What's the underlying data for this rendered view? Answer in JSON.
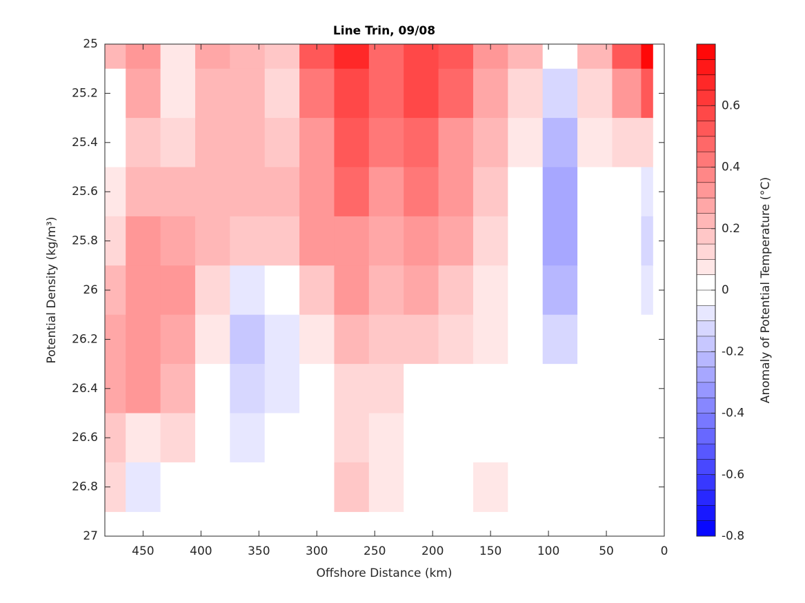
{
  "chart_data": {
    "type": "contourf",
    "title": "Line Trin, 09/08",
    "x_label": "Offshore Distance (km)",
    "y_label": "Potential Density (kg/m³)",
    "colorbar_label": "Anomaly of Potential Temperature (°C)",
    "xlim": [
      483,
      0
    ],
    "xticks": [
      450,
      400,
      350,
      300,
      250,
      200,
      150,
      100,
      50,
      0
    ],
    "ylim": [
      27,
      25
    ],
    "yticks": [
      25,
      25.2,
      25.4,
      25.6,
      25.8,
      26,
      26.2,
      26.4,
      26.6,
      26.8,
      27
    ],
    "clim": [
      -0.8,
      0.8
    ],
    "cticks": [
      -0.8,
      -0.6,
      -0.4,
      -0.2,
      0,
      0.2,
      0.4,
      0.6
    ],
    "x": [
      480,
      450,
      420,
      390,
      360,
      330,
      300,
      270,
      240,
      210,
      180,
      150,
      120,
      90,
      60,
      30,
      10
    ],
    "y": [
      25,
      25.2,
      25.4,
      25.6,
      25.8,
      26,
      26.2,
      26.4,
      26.6,
      26.8
    ],
    "z": [
      [
        0.2,
        0.3,
        0.05,
        0.25,
        0.2,
        0.15,
        0.5,
        0.65,
        0.45,
        0.55,
        0.5,
        0.3,
        0.2,
        0.0,
        0.2,
        0.5,
        0.75
      ],
      [
        0.0,
        0.25,
        0.05,
        0.2,
        0.2,
        0.1,
        0.4,
        0.6,
        0.45,
        0.55,
        0.45,
        0.25,
        0.1,
        -0.15,
        0.1,
        0.3,
        0.5
      ],
      [
        -0.05,
        0.15,
        0.1,
        0.2,
        0.2,
        0.15,
        0.35,
        0.5,
        0.4,
        0.45,
        0.35,
        0.2,
        0.05,
        -0.25,
        0.05,
        0.1,
        0.1
      ],
      [
        0.05,
        0.2,
        0.2,
        0.2,
        0.2,
        0.2,
        0.35,
        0.45,
        0.3,
        0.4,
        0.3,
        0.15,
        0.0,
        -0.3,
        -0.05,
        -0.05,
        -0.1
      ],
      [
        0.1,
        0.3,
        0.25,
        0.2,
        0.15,
        0.15,
        0.3,
        0.35,
        0.25,
        0.35,
        0.25,
        0.1,
        0.0,
        -0.3,
        -0.05,
        -0.05,
        -0.15
      ],
      [
        0.2,
        0.35,
        0.3,
        0.1,
        -0.1,
        -0.05,
        0.15,
        0.3,
        0.2,
        0.25,
        0.15,
        0.05,
        0.0,
        -0.25,
        -0.05,
        -0.05,
        -0.1
      ],
      [
        0.25,
        0.35,
        0.25,
        0.05,
        -0.2,
        -0.1,
        0.05,
        0.2,
        0.15,
        0.15,
        0.1,
        0.05,
        0.0,
        -0.15,
        -0.05,
        0.0,
        0.0
      ],
      [
        0.25,
        0.3,
        0.2,
        -0.05,
        -0.15,
        -0.1,
        0.0,
        0.1,
        0.1,
        0.0,
        0.0,
        -0.02,
        -0.05,
        -0.05,
        -0.02,
        -0.05,
        0.0
      ],
      [
        0.15,
        0.05,
        0.1,
        -0.05,
        -0.1,
        -0.05,
        0.0,
        0.1,
        0.05,
        0.0,
        0.0,
        -0.05,
        -0.05,
        -0.02,
        0.0,
        -0.02,
        0.0
      ],
      [
        0.1,
        -0.1,
        0.0,
        0.0,
        -0.05,
        -0.02,
        0.02,
        0.15,
        0.05,
        0.0,
        0.0,
        0.05,
        -0.02,
        0.0,
        0.0,
        0.0,
        0.0
      ]
    ]
  }
}
